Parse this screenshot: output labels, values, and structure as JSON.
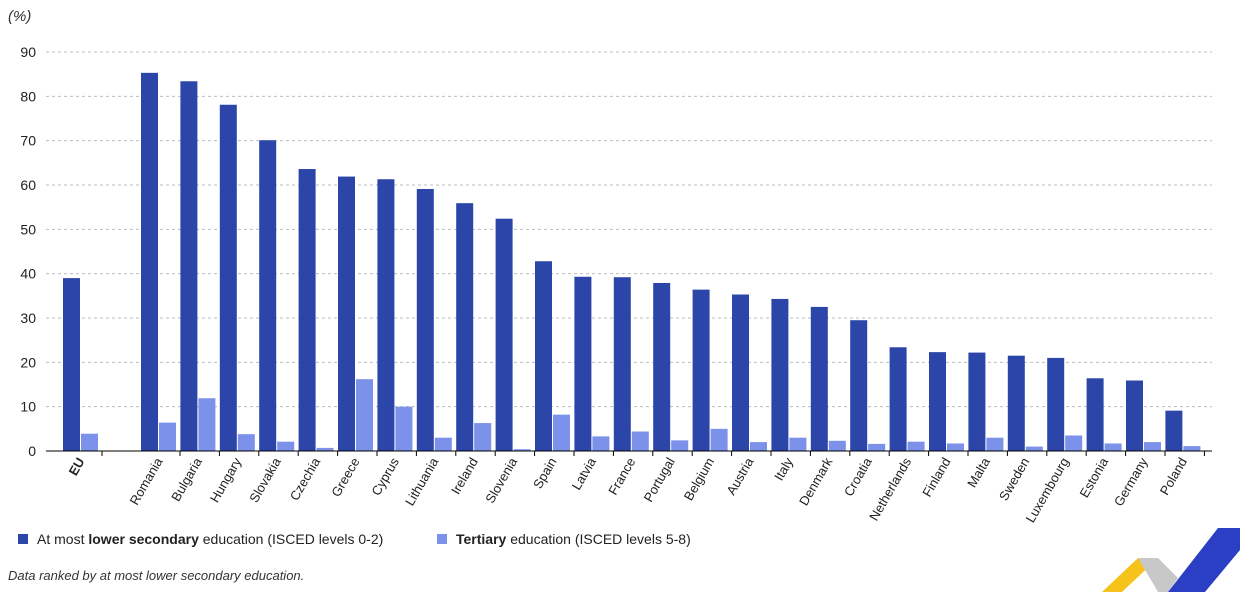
{
  "unit_label": "(%)",
  "legend": {
    "lower_prefix": "At most ",
    "lower_bold": "lower secondary",
    "lower_suffix": " education (ISCED levels 0-2)",
    "tertiary_bold": "Tertiary",
    "tertiary_suffix": " education (ISCED levels 5-8)"
  },
  "note": "Data ranked by at most lower secondary education.",
  "colors": {
    "lower": "#2b45a8",
    "tertiary": "#7b91ea",
    "grid": "#bdbdbd"
  },
  "chart_data": {
    "type": "bar",
    "ylim": [
      0,
      90
    ],
    "yticks": [
      0,
      10,
      20,
      30,
      40,
      50,
      60,
      70,
      80,
      90
    ],
    "grid": true,
    "legend_position": "bottom",
    "categories": [
      "EU",
      "Romania",
      "Bulgaria",
      "Hungary",
      "Slovakia",
      "Czechia",
      "Greece",
      "Cyprus",
      "Lithuania",
      "Ireland",
      "Slovenia",
      "Spain",
      "Latvia",
      "France",
      "Portugal",
      "Belgium",
      "Austria",
      "Italy",
      "Denmark",
      "Croatia",
      "Netherlands",
      "Finland",
      "Malta",
      "Sweden",
      "Luxembourg",
      "Estonia",
      "Germany",
      "Poland"
    ],
    "series": [
      {
        "name": "At most lower secondary education (ISCED levels 0-2)",
        "values": [
          39.0,
          85.3,
          83.4,
          78.1,
          70.1,
          63.6,
          61.9,
          61.3,
          59.1,
          55.9,
          52.4,
          42.8,
          39.3,
          39.2,
          37.9,
          36.4,
          35.3,
          34.3,
          32.5,
          29.5,
          23.4,
          22.3,
          22.2,
          21.5,
          21.0,
          16.4,
          15.9,
          9.1
        ]
      },
      {
        "name": "Tertiary education (ISCED levels 5-8)",
        "values": [
          3.9,
          6.4,
          11.9,
          3.8,
          2.1,
          0.7,
          16.2,
          10.0,
          3.0,
          6.3,
          0.4,
          8.2,
          3.3,
          4.4,
          2.4,
          5.0,
          2.0,
          3.0,
          2.3,
          1.6,
          2.1,
          1.7,
          3.0,
          1.0,
          3.5,
          1.7,
          2.0,
          1.1
        ]
      }
    ]
  }
}
